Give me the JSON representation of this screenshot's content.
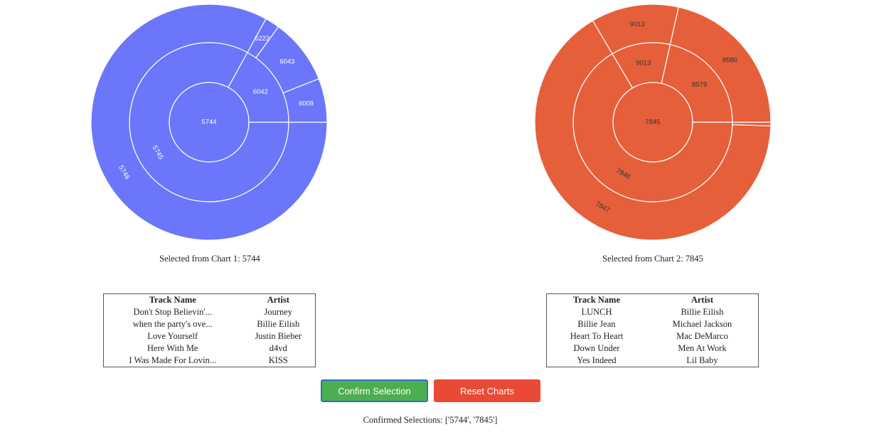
{
  "charts": [
    {
      "color": "#6b76fb",
      "label_color": "#ffffff",
      "inner": [
        {
          "label": "5744",
          "value": 100
        }
      ],
      "middle": [
        {
          "label": "5745",
          "value": 83
        },
        {
          "label": "6042",
          "value": 17
        }
      ],
      "outer": [
        {
          "label": "5746",
          "value": 83
        },
        {
          "label": "6222",
          "value": 2
        },
        {
          "label": "6043",
          "value": 9
        },
        {
          "label": "6009",
          "value": 6
        }
      ],
      "selected_text": "Selected from Chart 1: 5744",
      "table": {
        "headers": [
          "Track Name",
          "Artist"
        ],
        "rows": [
          [
            "Don't Stop Believin'...",
            "Journey"
          ],
          [
            "when the party's ove...",
            "Billie Eilish"
          ],
          [
            "Love Yourself",
            "Justin Bieber"
          ],
          [
            "Here With Me",
            "d4vd"
          ],
          [
            "I Was Made For Lovin...",
            "KISS"
          ]
        ]
      }
    },
    {
      "color": "#e65f3b",
      "label_color": "#333333",
      "inner": [
        {
          "label": "7845",
          "value": 100
        }
      ],
      "middle": [
        {
          "label": "7846",
          "value": 66.5
        },
        {
          "label": "9013",
          "value": 12
        },
        {
          "label": "8579",
          "value": 21.5
        }
      ],
      "outer": [
        {
          "label": "",
          "value": 0.5
        },
        {
          "label": "7847",
          "value": 66
        },
        {
          "label": "9013",
          "value": 12
        },
        {
          "label": "8580",
          "value": 21.5
        }
      ],
      "selected_text": "Selected from Chart 2: 7845",
      "table": {
        "headers": [
          "Track Name",
          "Artist"
        ],
        "rows": [
          [
            "LUNCH",
            "Billie Eilish"
          ],
          [
            "Billie Jean",
            "Michael Jackson"
          ],
          [
            "Heart To Heart",
            "Mac DeMarco"
          ],
          [
            "Down Under",
            "Men At Work"
          ],
          [
            "Yes Indeed",
            "Lil Baby"
          ]
        ]
      }
    }
  ],
  "buttons": {
    "confirm": "Confirm Selection",
    "reset": "Reset Charts"
  },
  "confirmed_text": "Confirmed Selections: ['5744', '7845']"
}
